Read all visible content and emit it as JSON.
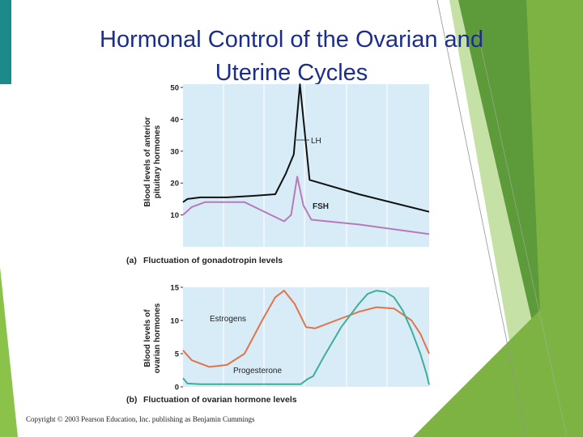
{
  "slide": {
    "title_line1": "Hormonal Control of the Ovarian and",
    "title_line2": "Uterine Cycles",
    "copyright": "Copyright © 2003 Pearson Education, Inc. publishing as Benjamin Cummings"
  },
  "colors": {
    "accent_bar": "#1b8a8a",
    "title": "#1c2e8c",
    "plot_bg": "#d8ecf8",
    "lh": "#111111",
    "fsh": "#b77ab8",
    "estrogen": "#e2734a",
    "progesterone": "#3fae98",
    "green_dark": "#5d9a3a",
    "green_mid": "#7cb342",
    "green_light": "#c5e1a5"
  },
  "chart_data": [
    {
      "type": "line",
      "title": "",
      "caption_tag": "(a)",
      "caption": "Fluctuation of gonadotropin levels",
      "ylabel_line1": "Blood levels of anterior",
      "ylabel_line2": "pituitary hormones",
      "xlabel": "",
      "ylim": [
        0,
        50
      ],
      "xlim": [
        0,
        28
      ],
      "y_ticks": [
        10,
        20,
        30,
        40,
        50
      ],
      "y_tick_labels": [
        "10",
        "20",
        "30",
        "40",
        "50"
      ],
      "series": [
        {
          "name": "LH",
          "label": "LH",
          "color_key": "lh",
          "x": [
            0,
            0.5,
            2,
            5,
            8,
            10.5,
            11.7,
            12.6,
            13.3,
            14.4,
            20,
            28
          ],
          "y": [
            14,
            15,
            15.5,
            15.5,
            16,
            16.5,
            23,
            29,
            51,
            21,
            16.5,
            11
          ]
        },
        {
          "name": "FSH",
          "label": "FSH",
          "color_key": "fsh",
          "x": [
            0,
            1,
            2.5,
            4,
            7,
            11.5,
            12.3,
            13,
            13.7,
            14.6,
            20,
            28
          ],
          "y": [
            10,
            12.5,
            14,
            14,
            14,
            8,
            10,
            22,
            13,
            8.5,
            7,
            4
          ]
        }
      ]
    },
    {
      "type": "line",
      "title": "",
      "caption_tag": "(b)",
      "caption": "Fluctuation of ovarian hormone levels",
      "ylabel_line1": "Blood levels of",
      "ylabel_line2": "ovarian hormones",
      "xlabel": "",
      "ylim": [
        0,
        15
      ],
      "xlim": [
        0,
        28
      ],
      "y_ticks": [
        0,
        5,
        10,
        15
      ],
      "y_tick_labels": [
        "0",
        "5",
        "10",
        "15"
      ],
      "series": [
        {
          "name": "Estrogens",
          "label": "Estrogens",
          "color_key": "estrogen",
          "x": [
            0,
            1,
            3,
            5,
            7,
            9,
            10.5,
            11.5,
            12.7,
            14,
            15,
            16,
            18,
            20,
            22,
            24,
            26,
            27,
            28
          ],
          "y": [
            5.5,
            4,
            3,
            3.3,
            5,
            10,
            13.5,
            14.5,
            12.5,
            9,
            8.8,
            9.3,
            10.3,
            11.3,
            12,
            11.8,
            10,
            8,
            5
          ]
        },
        {
          "name": "Progesterone",
          "label": "Progesterone",
          "color_key": "progesterone",
          "x": [
            0,
            0.5,
            2,
            8,
            13.4,
            14.2,
            14.8,
            16,
            18,
            20,
            21,
            22,
            23,
            24,
            25,
            26,
            27,
            27.7,
            28
          ],
          "y": [
            1.3,
            0.5,
            0.4,
            0.4,
            0.4,
            1.2,
            1.6,
            4.5,
            9,
            12.5,
            14,
            14.5,
            14.3,
            13.5,
            11.5,
            8.5,
            5,
            2,
            0.3
          ]
        }
      ]
    }
  ]
}
